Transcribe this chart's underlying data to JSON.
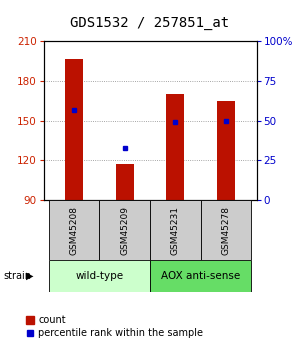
{
  "title": "GDS1532 / 257851_at",
  "samples": [
    "GSM45208",
    "GSM45209",
    "GSM45231",
    "GSM45278"
  ],
  "counts": [
    197,
    117,
    170,
    165
  ],
  "percentiles": [
    57,
    33,
    49,
    50
  ],
  "ymin": 90,
  "ymax": 210,
  "yticks_left": [
    90,
    120,
    150,
    180,
    210
  ],
  "yticks_right": [
    0,
    25,
    50,
    75,
    100
  ],
  "bar_color": "#bb1100",
  "dot_color": "#0000cc",
  "groups": [
    {
      "label": "wild-type",
      "indices": [
        0,
        1
      ],
      "color": "#ccffcc"
    },
    {
      "label": "AOX anti-sense",
      "indices": [
        2,
        3
      ],
      "color": "#66dd66"
    }
  ],
  "sample_box_color": "#cccccc",
  "title_fontsize": 10,
  "tick_fontsize": 7.5,
  "sample_fontsize": 6.5,
  "group_fontsize": 7.5,
  "legend_fontsize": 7
}
